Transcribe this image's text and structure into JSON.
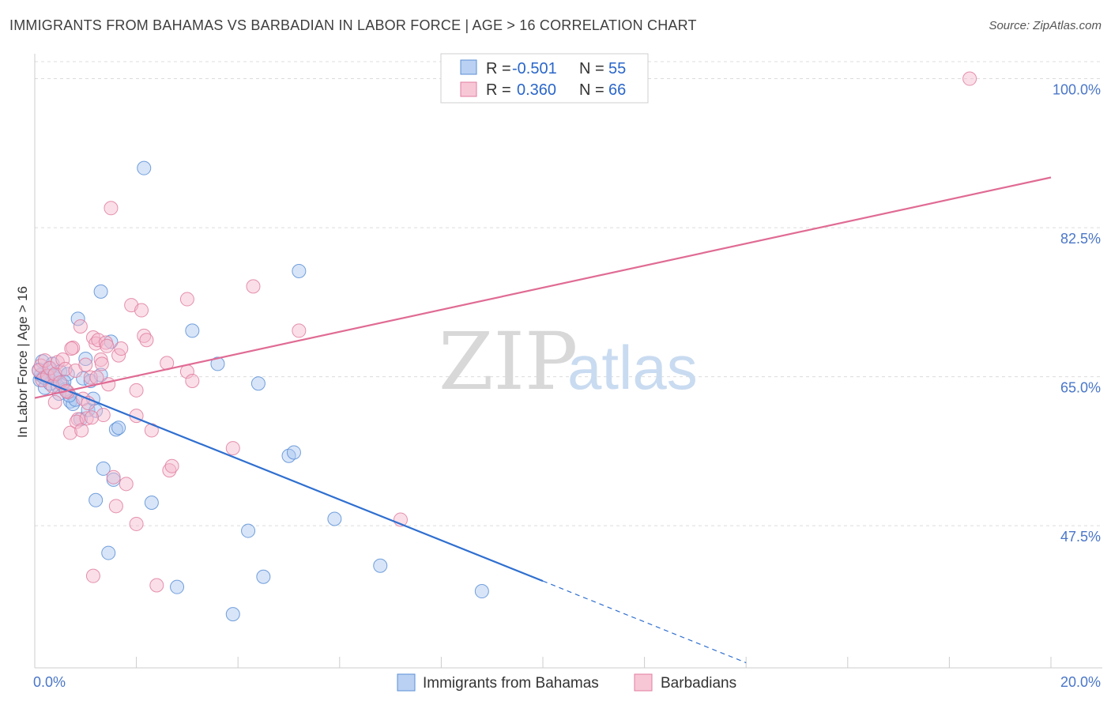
{
  "header": {
    "title": "IMMIGRANTS FROM BAHAMAS VS BARBADIAN IN LABOR FORCE | AGE > 16 CORRELATION CHART",
    "source": "Source: ZipAtlas.com"
  },
  "watermark": {
    "zip": "ZIP",
    "atlas": "atlas"
  },
  "chart_data": {
    "type": "scatter",
    "title": "IMMIGRANTS FROM BAHAMAS VS BARBADIAN IN LABOR FORCE | AGE > 16 CORRELATION CHART",
    "xlabel": "",
    "ylabel": "In Labor Force | Age > 16",
    "xlim": [
      0,
      20
    ],
    "ylim": [
      30.8,
      102
    ],
    "x_tick_labels": [
      "0.0%",
      "20.0%"
    ],
    "y_ticks": [
      47.5,
      65.0,
      82.5,
      100.0
    ],
    "y_tick_labels": [
      "47.5%",
      "65.0%",
      "82.5%",
      "100.0%"
    ],
    "grid": true,
    "legend": {
      "position": "top-center",
      "entries": [
        {
          "r_label": "R =",
          "r_value": "-0.501",
          "n_label": "N =",
          "n_value": "55"
        },
        {
          "r_label": "R =",
          "r_value": "0.360",
          "n_label": "N =",
          "n_value": "66"
        }
      ]
    },
    "series": [
      {
        "name": "Immigrants from Bahamas",
        "color": "#5b8fd6",
        "fill": "#a9c6f0",
        "trend": {
          "x0": 0.0,
          "y0": 64.9,
          "x1": 10.0,
          "y1": 41.0,
          "dash_to_x": 14.0,
          "dash_to_y": 31.4
        },
        "points": [
          [
            0.1,
            64.6
          ],
          [
            0.12,
            65.2
          ],
          [
            0.15,
            66.8
          ],
          [
            0.2,
            63.7
          ],
          [
            0.25,
            65.0
          ],
          [
            0.3,
            64.2
          ],
          [
            0.35,
            66.5
          ],
          [
            0.4,
            64.8
          ],
          [
            0.45,
            63.9
          ],
          [
            0.5,
            65.6
          ],
          [
            0.55,
            64.0
          ],
          [
            0.6,
            63.5
          ],
          [
            0.65,
            65.3
          ],
          [
            0.7,
            62.1
          ],
          [
            0.75,
            61.8
          ],
          [
            0.8,
            62.3
          ],
          [
            0.85,
            71.8
          ],
          [
            0.9,
            60.0
          ],
          [
            0.95,
            64.8
          ],
          [
            1.0,
            67.1
          ],
          [
            1.05,
            61.1
          ],
          [
            1.1,
            64.5
          ],
          [
            1.15,
            62.4
          ],
          [
            1.2,
            61.0
          ],
          [
            1.3,
            65.2
          ],
          [
            1.3,
            75.0
          ],
          [
            1.35,
            54.2
          ],
          [
            1.45,
            44.3
          ],
          [
            1.5,
            69.1
          ],
          [
            1.55,
            52.9
          ],
          [
            1.6,
            58.8
          ],
          [
            1.65,
            59.0
          ],
          [
            1.2,
            50.5
          ],
          [
            2.15,
            89.5
          ],
          [
            2.3,
            50.2
          ],
          [
            2.8,
            40.3
          ],
          [
            3.1,
            70.4
          ],
          [
            3.6,
            66.5
          ],
          [
            3.9,
            37.1
          ],
          [
            4.2,
            46.9
          ],
          [
            4.4,
            64.2
          ],
          [
            4.5,
            41.5
          ],
          [
            5.0,
            55.7
          ],
          [
            5.1,
            56.1
          ],
          [
            5.2,
            77.4
          ],
          [
            5.9,
            48.3
          ],
          [
            6.8,
            42.8
          ],
          [
            8.8,
            39.8
          ],
          [
            0.08,
            65.8
          ],
          [
            0.18,
            64.9
          ],
          [
            0.28,
            66.0
          ],
          [
            0.38,
            65.1
          ],
          [
            0.48,
            63.0
          ],
          [
            0.58,
            64.4
          ],
          [
            0.68,
            62.8
          ]
        ]
      },
      {
        "name": "Barbadians",
        "color": "#e07ea0",
        "fill": "#f5b9cc",
        "trend": {
          "x0": 0.0,
          "y0": 62.5,
          "x1": 20.0,
          "y1": 88.4
        },
        "points": [
          [
            0.08,
            65.7
          ],
          [
            0.12,
            66.3
          ],
          [
            0.15,
            64.6
          ],
          [
            0.2,
            66.9
          ],
          [
            0.25,
            65.1
          ],
          [
            0.3,
            66.0
          ],
          [
            0.35,
            63.9
          ],
          [
            0.4,
            65.3
          ],
          [
            0.45,
            66.7
          ],
          [
            0.5,
            64.3
          ],
          [
            0.55,
            67.0
          ],
          [
            0.6,
            65.9
          ],
          [
            0.65,
            63.2
          ],
          [
            0.7,
            58.4
          ],
          [
            0.75,
            68.4
          ],
          [
            0.8,
            65.7
          ],
          [
            0.85,
            60.0
          ],
          [
            0.9,
            70.9
          ],
          [
            0.95,
            62.4
          ],
          [
            1.0,
            66.4
          ],
          [
            1.05,
            61.9
          ],
          [
            1.1,
            64.9
          ],
          [
            1.15,
            69.6
          ],
          [
            1.2,
            68.9
          ],
          [
            1.25,
            69.3
          ],
          [
            1.3,
            67.0
          ],
          [
            1.35,
            60.5
          ],
          [
            1.4,
            69.0
          ],
          [
            1.45,
            64.1
          ],
          [
            1.5,
            84.8
          ],
          [
            1.55,
            53.2
          ],
          [
            1.6,
            49.8
          ],
          [
            1.65,
            67.5
          ],
          [
            1.7,
            68.3
          ],
          [
            1.8,
            52.4
          ],
          [
            1.9,
            73.4
          ],
          [
            2.0,
            60.4
          ],
          [
            2.0,
            47.7
          ],
          [
            2.1,
            72.8
          ],
          [
            2.15,
            69.8
          ],
          [
            2.2,
            69.3
          ],
          [
            2.3,
            58.7
          ],
          [
            2.4,
            40.5
          ],
          [
            2.6,
            66.6
          ],
          [
            2.65,
            54.0
          ],
          [
            2.7,
            54.5
          ],
          [
            3.0,
            74.1
          ],
          [
            3.0,
            65.6
          ],
          [
            3.1,
            64.5
          ],
          [
            3.9,
            56.6
          ],
          [
            4.3,
            75.6
          ],
          [
            5.2,
            70.4
          ],
          [
            7.2,
            48.2
          ],
          [
            18.4,
            100.0
          ],
          [
            1.15,
            41.6
          ],
          [
            0.4,
            62.0
          ],
          [
            0.62,
            63.3
          ],
          [
            0.72,
            68.3
          ],
          [
            0.82,
            59.7
          ],
          [
            0.92,
            58.7
          ],
          [
            1.02,
            60.1
          ],
          [
            1.12,
            60.2
          ],
          [
            1.22,
            64.9
          ],
          [
            1.32,
            66.5
          ],
          [
            1.42,
            68.6
          ],
          [
            2.0,
            63.4
          ]
        ]
      }
    ]
  },
  "bottom_legend": {
    "items": [
      {
        "label": "Immigrants from Bahamas"
      },
      {
        "label": "Barbadians"
      }
    ]
  },
  "colors": {
    "blue_line": "#2f6fd0",
    "pink_line": "#e06b94",
    "grid": "#dcdcdc",
    "tick_label": "#4a76c8"
  }
}
